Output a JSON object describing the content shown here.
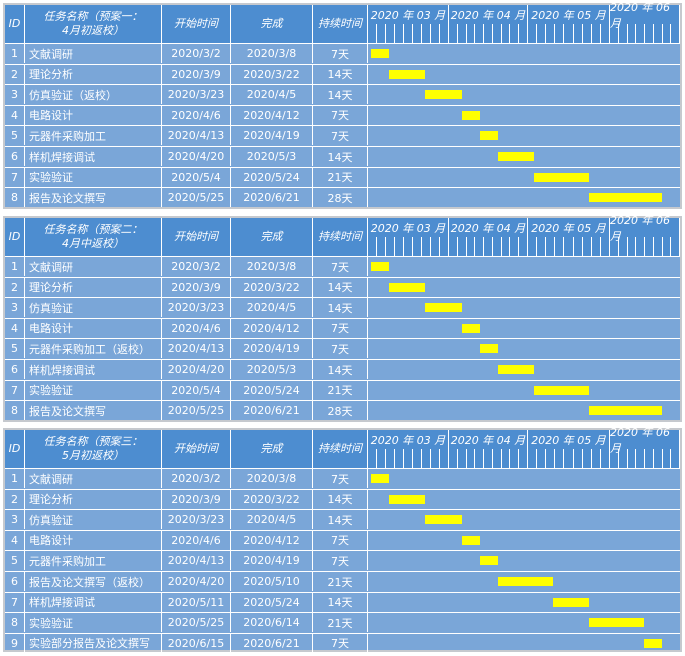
{
  "plans": [
    {
      "header": {
        "id": "ID",
        "name_line1": "任务名称（预案一：",
        "name_line2": "4月初返校）",
        "start": "开始时间",
        "end": "完成",
        "duration": "持续时间"
      },
      "tasks": [
        {
          "id": "1",
          "name": "文献调研",
          "start": "2020/3/2",
          "end": "2020/3/8",
          "duration": "7天"
        },
        {
          "id": "2",
          "name": "理论分析",
          "start": "2020/3/9",
          "end": "2020/3/22",
          "duration": "14天"
        },
        {
          "id": "3",
          "name": "仿真验证（返校）",
          "start": "2020/3/23",
          "end": "2020/4/5",
          "duration": "14天"
        },
        {
          "id": "4",
          "name": "电路设计",
          "start": "2020/4/6",
          "end": "2020/4/12",
          "duration": "7天"
        },
        {
          "id": "5",
          "name": "元器件采购加工",
          "start": "2020/4/13",
          "end": "2020/4/19",
          "duration": "7天"
        },
        {
          "id": "6",
          "name": "样机焊接调试",
          "start": "2020/4/20",
          "end": "2020/5/3",
          "duration": "14天"
        },
        {
          "id": "7",
          "name": "实验验证",
          "start": "2020/5/4",
          "end": "2020/5/24",
          "duration": "21天"
        },
        {
          "id": "8",
          "name": "报告及论文撰写",
          "start": "2020/5/25",
          "end": "2020/6/21",
          "duration": "28天"
        }
      ]
    },
    {
      "header": {
        "id": "ID",
        "name_line1": "任务名称（预案二：",
        "name_line2": "4月中返校）",
        "start": "开始时间",
        "end": "完成",
        "duration": "持续时间"
      },
      "tasks": [
        {
          "id": "1",
          "name": "文献调研",
          "start": "2020/3/2",
          "end": "2020/3/8",
          "duration": "7天"
        },
        {
          "id": "2",
          "name": "理论分析",
          "start": "2020/3/9",
          "end": "2020/3/22",
          "duration": "14天"
        },
        {
          "id": "3",
          "name": "仿真验证",
          "start": "2020/3/23",
          "end": "2020/4/5",
          "duration": "14天"
        },
        {
          "id": "4",
          "name": "电路设计",
          "start": "2020/4/6",
          "end": "2020/4/12",
          "duration": "7天"
        },
        {
          "id": "5",
          "name": "元器件采购加工（返校）",
          "start": "2020/4/13",
          "end": "2020/4/19",
          "duration": "7天"
        },
        {
          "id": "6",
          "name": "样机焊接调试",
          "start": "2020/4/20",
          "end": "2020/5/3",
          "duration": "14天"
        },
        {
          "id": "7",
          "name": "实验验证",
          "start": "2020/5/4",
          "end": "2020/5/24",
          "duration": "21天"
        },
        {
          "id": "8",
          "name": "报告及论文撰写",
          "start": "2020/5/25",
          "end": "2020/6/21",
          "duration": "28天"
        }
      ]
    },
    {
      "header": {
        "id": "ID",
        "name_line1": "任务名称（预案三：",
        "name_line2": "5月初返校）",
        "start": "开始时间",
        "end": "完成",
        "duration": "持续时间"
      },
      "tasks": [
        {
          "id": "1",
          "name": "文献调研",
          "start": "2020/3/2",
          "end": "2020/3/8",
          "duration": "7天"
        },
        {
          "id": "2",
          "name": "理论分析",
          "start": "2020/3/9",
          "end": "2020/3/22",
          "duration": "14天"
        },
        {
          "id": "3",
          "name": "仿真验证",
          "start": "2020/3/23",
          "end": "2020/4/5",
          "duration": "14天"
        },
        {
          "id": "4",
          "name": "电路设计",
          "start": "2020/4/6",
          "end": "2020/4/12",
          "duration": "7天"
        },
        {
          "id": "5",
          "name": "元器件采购加工",
          "start": "2020/4/13",
          "end": "2020/4/19",
          "duration": "7天"
        },
        {
          "id": "6",
          "name": "报告及论文撰写（返校）",
          "start": "2020/4/20",
          "end": "2020/5/10",
          "duration": "21天"
        },
        {
          "id": "7",
          "name": "样机焊接调试",
          "start": "2020/5/11",
          "end": "2020/5/24",
          "duration": "14天"
        },
        {
          "id": "8",
          "name": "实验验证",
          "start": "2020/5/25",
          "end": "2020/6/14",
          "duration": "21天"
        },
        {
          "id": "9",
          "name": "实验部分报告及论文撰写",
          "start": "2020/6/15",
          "end": "2020/6/21",
          "duration": "7天"
        }
      ]
    }
  ],
  "months": [
    "2020 年 03 月",
    "2020 年 04 月",
    "2020 年 05 月",
    "2020 年 06 月"
  ],
  "colors": {
    "header": "#4d8dd0",
    "body": "#7aa6d8",
    "bar": "#ffff00",
    "grid": "#ffffff"
  }
}
